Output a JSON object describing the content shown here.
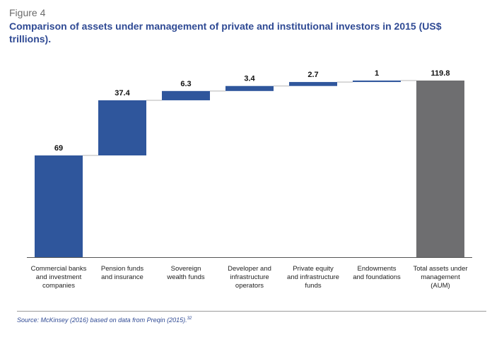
{
  "figure": {
    "label": "Figure 4",
    "title": "Comparison of assets under management of private and institutional investors in 2015 (US$ trillions).",
    "source": "Source: McKinsey (2016) based on data from Preqin (2015).",
    "source_ref": "32"
  },
  "colors": {
    "bar": "#2f569c",
    "total": "#6e6e70",
    "connector": "#b5b5b5",
    "axis": "#555555"
  },
  "chart_data": {
    "type": "bar",
    "subtype": "waterfall",
    "title": "Comparison of assets under management of private and institutional investors in 2015 (US$ trillions).",
    "xlabel": "",
    "ylabel": "",
    "ylim": [
      0,
      119.8
    ],
    "grid": false,
    "categories": [
      [
        "Commercial banks",
        "and investment",
        "companies"
      ],
      [
        "Pension funds",
        "and insurance"
      ],
      [
        "Sovereign",
        "wealth funds"
      ],
      [
        "Developer and",
        "infrastructure",
        "operators"
      ],
      [
        "Private equity",
        "and infrastructure",
        "funds"
      ],
      [
        "Endowments",
        "and foundations"
      ],
      [
        "Total assets under",
        "management",
        "(AUM)"
      ]
    ],
    "values": [
      69,
      37.4,
      6.3,
      3.4,
      2.7,
      1,
      119.8
    ],
    "value_labels": [
      "69",
      "37.4",
      "6.3",
      "3.4",
      "2.7",
      "1",
      "119.8"
    ],
    "is_total": [
      false,
      false,
      false,
      false,
      false,
      false,
      true
    ]
  }
}
